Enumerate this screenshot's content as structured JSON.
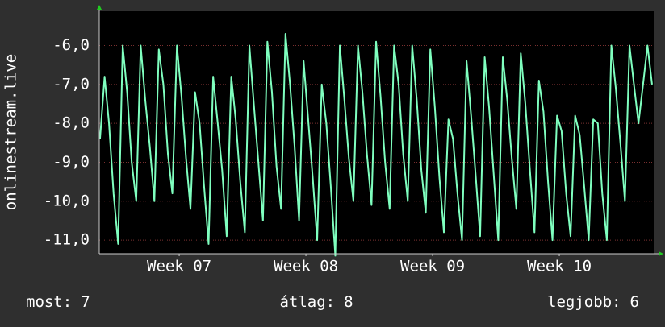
{
  "chart_data": {
    "type": "line",
    "y_label": "onlinestream.live",
    "color": "#7fffbf",
    "grid": true,
    "xlim": [
      6.869,
      11.245
    ],
    "xticks": [
      {
        "value": 7.5,
        "label": "Week 07"
      },
      {
        "value": 8.5,
        "label": "Week 08"
      },
      {
        "value": 9.5,
        "label": "Week 09"
      },
      {
        "value": 10.5,
        "label": "Week 10"
      }
    ],
    "ylim": [
      -11.35,
      -5.12
    ],
    "yticks": [
      {
        "value": -11,
        "label": "-11,0"
      },
      {
        "value": -10,
        "label": "-10,0"
      },
      {
        "value": -9,
        "label": "-9,0"
      },
      {
        "value": -8,
        "label": "-8,0"
      },
      {
        "value": -7,
        "label": "-7,0"
      },
      {
        "value": -6,
        "label": "-6,0"
      }
    ],
    "x": [
      6.875,
      6.911,
      6.946,
      6.982,
      7.018,
      7.054,
      7.089,
      7.125,
      7.161,
      7.196,
      7.232,
      7.268,
      7.304,
      7.339,
      7.375,
      7.411,
      7.446,
      7.482,
      7.518,
      7.554,
      7.589,
      7.625,
      7.661,
      7.696,
      7.732,
      7.768,
      7.804,
      7.839,
      7.875,
      7.911,
      7.946,
      7.982,
      8.018,
      8.054,
      8.089,
      8.125,
      8.161,
      8.196,
      8.232,
      8.268,
      8.304,
      8.339,
      8.375,
      8.411,
      8.446,
      8.482,
      8.518,
      8.554,
      8.589,
      8.625,
      8.661,
      8.696,
      8.732,
      8.768,
      8.804,
      8.839,
      8.875,
      8.911,
      8.946,
      8.982,
      9.018,
      9.054,
      9.089,
      9.125,
      9.161,
      9.196,
      9.232,
      9.268,
      9.304,
      9.339,
      9.375,
      9.411,
      9.446,
      9.482,
      9.518,
      9.554,
      9.589,
      9.625,
      9.661,
      9.696,
      9.732,
      9.768,
      9.804,
      9.839,
      9.875,
      9.911,
      9.946,
      9.982,
      10.018,
      10.054,
      10.089,
      10.125,
      10.161,
      10.196,
      10.232,
      10.268,
      10.304,
      10.339,
      10.375,
      10.411,
      10.446,
      10.482,
      10.518,
      10.554,
      10.589,
      10.625,
      10.661,
      10.696,
      10.732,
      10.768,
      10.804,
      10.839,
      10.875,
      10.911,
      10.946,
      10.982,
      11.018,
      11.054,
      11.089,
      11.125,
      11.161,
      11.196,
      11.232
    ],
    "values": [
      -8.4,
      -6.8,
      -8.0,
      -9.8,
      -11.1,
      -6.0,
      -7.2,
      -9.0,
      -10.0,
      -6.0,
      -7.4,
      -8.6,
      -10.0,
      -6.1,
      -7.0,
      -8.8,
      -9.8,
      -6.0,
      -7.3,
      -8.9,
      -10.2,
      -7.2,
      -8.0,
      -9.6,
      -11.1,
      -6.8,
      -8.0,
      -9.2,
      -10.9,
      -6.8,
      -7.9,
      -9.5,
      -10.8,
      -6.0,
      -7.5,
      -9.0,
      -10.5,
      -5.9,
      -7.2,
      -9.1,
      -10.2,
      -5.7,
      -7.0,
      -8.6,
      -10.5,
      -6.4,
      -7.9,
      -9.4,
      -11.0,
      -7.0,
      -8.0,
      -9.6,
      -11.4,
      -6.0,
      -7.4,
      -8.9,
      -10.0,
      -6.0,
      -7.2,
      -8.8,
      -10.1,
      -5.9,
      -7.3,
      -9.0,
      -10.2,
      -6.0,
      -7.0,
      -8.8,
      -10.0,
      -6.0,
      -7.4,
      -9.2,
      -10.3,
      -6.1,
      -7.6,
      -9.4,
      -10.8,
      -7.9,
      -8.4,
      -9.8,
      -11.0,
      -6.4,
      -7.8,
      -9.3,
      -10.9,
      -6.3,
      -7.6,
      -9.3,
      -11.0,
      -6.3,
      -7.4,
      -8.9,
      -10.2,
      -6.2,
      -7.5,
      -9.2,
      -10.8,
      -6.9,
      -7.7,
      -9.5,
      -11.0,
      -7.8,
      -8.2,
      -9.8,
      -10.9,
      -7.8,
      -8.3,
      -9.6,
      -11.0,
      -7.9,
      -8.0,
      -9.8,
      -11.0,
      -6.0,
      -7.1,
      -8.5,
      -10.0,
      -6.0,
      -7.0,
      -8.0,
      -7.0,
      -6.0,
      -7.0
    ],
    "stats": [
      {
        "label": "most:",
        "value": 7
      },
      {
        "label": "átlag:",
        "value": 8
      },
      {
        "label": "legjobb:",
        "value": 6
      }
    ]
  }
}
